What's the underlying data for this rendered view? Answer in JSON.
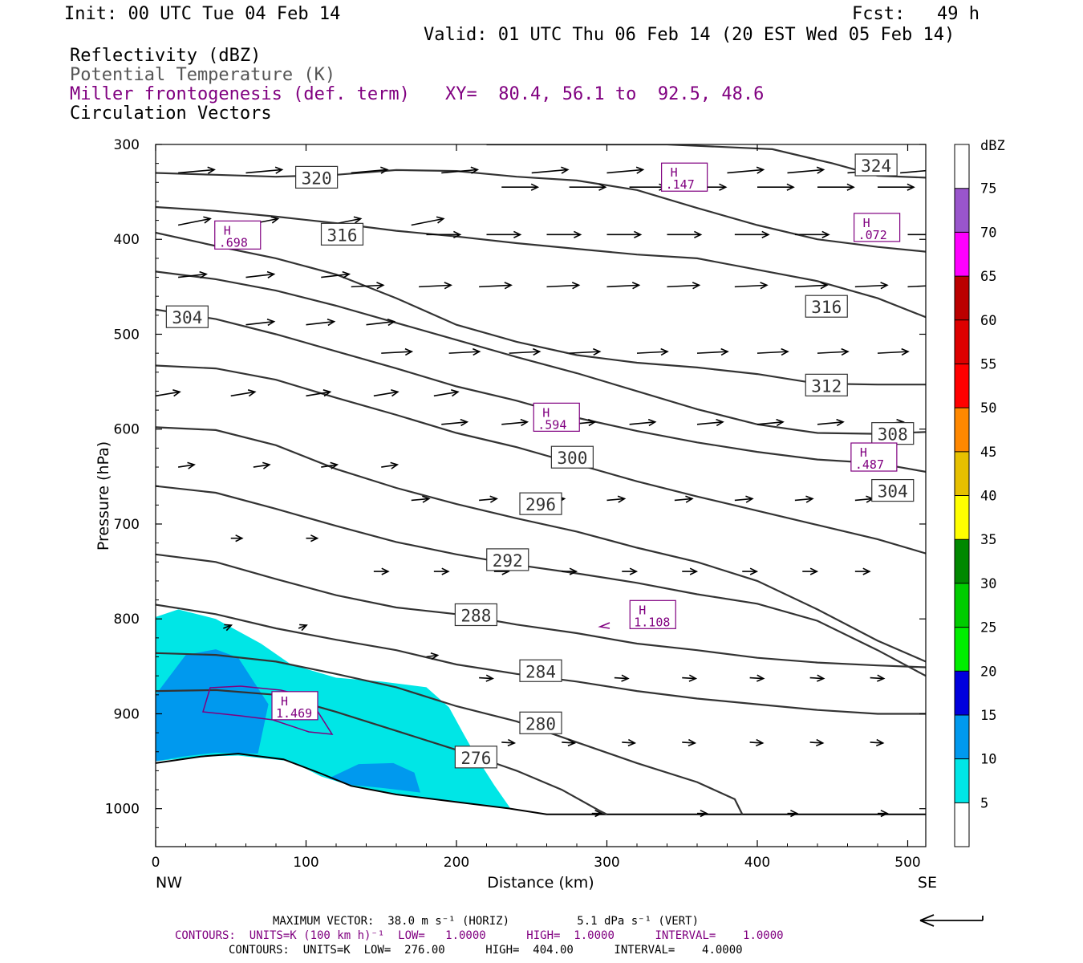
{
  "header": {
    "init": "Init: 00 UTC Tue 04 Feb 14",
    "fcst": "Fcst:   49 h",
    "valid": "Valid: 01 UTC Thu 06 Feb 14 (20 EST Wed 05 Feb 14)",
    "field1": "Reflectivity (dBZ)",
    "field2": "Potential Temperature (K)",
    "field3": "Miller frontogenesis (def. term)",
    "xy": "XY=  80.4, 56.1 to  92.5, 48.6",
    "field4": "Circulation Vectors"
  },
  "footer": {
    "maxvec": "MAXIMUM VECTOR:  38.0 m s⁻¹ (HORIZ)          5.1 dPa s⁻¹ (VERT)",
    "contours_front": "CONTOURS:  UNITS=K (100 km h)⁻¹  LOW=   1.0000      HIGH=  1.0000      INTERVAL=    1.0000",
    "contours_theta": "CONTOURS:  UNITS=K  LOW=  276.00      HIGH=  404.00      INTERVAL=    4.0000"
  },
  "colors": {
    "frontogenesis": "#800080",
    "theta": "#333333"
  },
  "chart_data": {
    "type": "cross-section",
    "xlabel": "Distance (km)",
    "ylabel": "Pressure (hPa)",
    "xlim": [
      0,
      512
    ],
    "ylim": [
      1040,
      300
    ],
    "x_ticks": [
      0,
      100,
      200,
      300,
      400,
      500
    ],
    "y_ticks": [
      300,
      400,
      500,
      600,
      700,
      800,
      900,
      1000
    ],
    "left_end_label": "NW",
    "right_end_label": "SE",
    "colorbar": {
      "unit": "dBZ",
      "levels": [
        5,
        10,
        15,
        20,
        25,
        30,
        35,
        40,
        45,
        50,
        55,
        60,
        65,
        70,
        75
      ],
      "colors": [
        "#ffffff",
        "#00e6e6",
        "#0099ee",
        "#0000dd",
        "#00ee00",
        "#00cc00",
        "#008800",
        "#ffff00",
        "#e6c000",
        "#ff8800",
        "#ff0000",
        "#dd0000",
        "#bb0000",
        "#ff00ff",
        "#9955cc",
        "#ffffff"
      ]
    },
    "reflectivity": [
      {
        "dbz": 5,
        "color": "#00e6e6",
        "polygon": [
          [
            0,
            798
          ],
          [
            15,
            790
          ],
          [
            40,
            800
          ],
          [
            70,
            826
          ],
          [
            90,
            848
          ],
          [
            120,
            862
          ],
          [
            150,
            866
          ],
          [
            180,
            872
          ],
          [
            195,
            893
          ],
          [
            205,
            922
          ],
          [
            215,
            950
          ],
          [
            225,
            975
          ],
          [
            236,
            1000
          ],
          [
            200,
            993
          ],
          [
            170,
            987
          ],
          [
            130,
            976
          ],
          [
            110,
            966
          ],
          [
            90,
            950
          ],
          [
            55,
            944
          ],
          [
            30,
            945
          ],
          [
            0,
            950
          ]
        ]
      },
      {
        "dbz": 10,
        "color": "#0099ee",
        "polygon": [
          [
            0,
            880
          ],
          [
            20,
            838
          ],
          [
            40,
            832
          ],
          [
            55,
            841
          ],
          [
            75,
            890
          ],
          [
            68,
            942
          ],
          [
            40,
            941
          ],
          [
            18,
            945
          ],
          [
            0,
            950
          ]
        ]
      },
      {
        "dbz": 10,
        "color": "#0099ee",
        "polygon": [
          [
            115,
            968
          ],
          [
            135,
            953
          ],
          [
            158,
            952
          ],
          [
            172,
            962
          ],
          [
            176,
            983
          ],
          [
            150,
            978
          ],
          [
            130,
            975
          ]
        ]
      }
    ],
    "ground": [
      [
        0,
        952
      ],
      [
        30,
        945
      ],
      [
        55,
        942
      ],
      [
        85,
        948
      ],
      [
        110,
        963
      ],
      [
        130,
        976
      ],
      [
        160,
        985
      ],
      [
        200,
        993
      ],
      [
        236,
        1000
      ],
      [
        260,
        1006
      ],
      [
        300,
        1006
      ],
      [
        400,
        1006
      ],
      [
        512,
        1006
      ]
    ],
    "theta_contours": [
      {
        "value": 276,
        "label_at": [
          213,
          946
        ],
        "points": [
          [
            0,
            876
          ],
          [
            40,
            875
          ],
          [
            80,
            880
          ],
          [
            120,
            898
          ],
          [
            160,
            918
          ],
          [
            200,
            938
          ],
          [
            240,
            960
          ],
          [
            270,
            980
          ],
          [
            295,
            1002
          ],
          [
            300,
            1006
          ]
        ]
      },
      {
        "value": 280,
        "label_at": [
          256,
          910
        ],
        "points": [
          [
            0,
            836
          ],
          [
            40,
            838
          ],
          [
            80,
            845
          ],
          [
            120,
            858
          ],
          [
            160,
            872
          ],
          [
            200,
            892
          ],
          [
            240,
            908
          ],
          [
            280,
            930
          ],
          [
            320,
            952
          ],
          [
            360,
            972
          ],
          [
            385,
            990
          ],
          [
            390,
            1006
          ]
        ]
      },
      {
        "value": 284,
        "label_at": [
          256,
          855
        ],
        "points": [
          [
            0,
            785
          ],
          [
            40,
            795
          ],
          [
            80,
            810
          ],
          [
            120,
            822
          ],
          [
            160,
            833
          ],
          [
            200,
            848
          ],
          [
            240,
            858
          ],
          [
            280,
            866
          ],
          [
            320,
            876
          ],
          [
            360,
            884
          ],
          [
            400,
            890
          ],
          [
            440,
            896
          ],
          [
            480,
            900
          ],
          [
            512,
            900
          ]
        ]
      },
      {
        "value": 288,
        "label_at": [
          213,
          796
        ],
        "points": [
          [
            0,
            732
          ],
          [
            40,
            740
          ],
          [
            80,
            758
          ],
          [
            120,
            775
          ],
          [
            160,
            788
          ],
          [
            200,
            795
          ],
          [
            240,
            806
          ],
          [
            280,
            815
          ],
          [
            320,
            826
          ],
          [
            360,
            833
          ],
          [
            400,
            841
          ],
          [
            440,
            846
          ],
          [
            480,
            849
          ],
          [
            512,
            851
          ]
        ]
      },
      {
        "value": 292,
        "label_at": [
          234,
          738
        ],
        "points": [
          [
            0,
            660
          ],
          [
            40,
            667
          ],
          [
            80,
            684
          ],
          [
            120,
            702
          ],
          [
            160,
            719
          ],
          [
            200,
            732
          ],
          [
            240,
            743
          ],
          [
            280,
            752
          ],
          [
            320,
            762
          ],
          [
            360,
            774
          ],
          [
            400,
            784
          ],
          [
            440,
            802
          ],
          [
            480,
            833
          ],
          [
            512,
            860
          ]
        ]
      },
      {
        "value": 296,
        "label_at": [
          256,
          679
        ],
        "points": [
          [
            0,
            598
          ],
          [
            40,
            601
          ],
          [
            80,
            617
          ],
          [
            120,
            642
          ],
          [
            160,
            662
          ],
          [
            200,
            679
          ],
          [
            240,
            694
          ],
          [
            280,
            708
          ],
          [
            320,
            725
          ],
          [
            360,
            740
          ],
          [
            400,
            760
          ],
          [
            440,
            790
          ],
          [
            480,
            823
          ],
          [
            512,
            845
          ]
        ]
      },
      {
        "value": 300,
        "label_at": [
          277,
          630
        ],
        "points": [
          [
            0,
            533
          ],
          [
            40,
            536
          ],
          [
            80,
            548
          ],
          [
            120,
            567
          ],
          [
            160,
            585
          ],
          [
            200,
            604
          ],
          [
            240,
            619
          ],
          [
            280,
            637
          ],
          [
            320,
            655
          ],
          [
            360,
            671
          ],
          [
            400,
            686
          ],
          [
            440,
            701
          ],
          [
            480,
            716
          ],
          [
            512,
            731
          ]
        ]
      },
      {
        "value": 304,
        "label_at": [
          21,
          482
        ],
        "points": [
          [
            0,
            474
          ],
          [
            40,
            484
          ],
          [
            80,
            500
          ],
          [
            120,
            518
          ],
          [
            160,
            536
          ],
          [
            200,
            555
          ],
          [
            240,
            570
          ],
          [
            280,
            588
          ],
          [
            320,
            602
          ],
          [
            360,
            614
          ],
          [
            400,
            624
          ],
          [
            440,
            632
          ],
          [
            480,
            636
          ],
          [
            512,
            645
          ]
        ]
      },
      {
        "value": 304,
        "label_at": [
          490,
          665
        ]
      },
      {
        "value": 308,
        "label_at": [
          490,
          605
        ],
        "points": [
          [
            0,
            434
          ],
          [
            40,
            442
          ],
          [
            80,
            454
          ],
          [
            120,
            470
          ],
          [
            160,
            488
          ],
          [
            200,
            506
          ],
          [
            240,
            524
          ],
          [
            280,
            541
          ],
          [
            320,
            560
          ],
          [
            360,
            579
          ],
          [
            400,
            595
          ],
          [
            440,
            604
          ],
          [
            480,
            605
          ],
          [
            512,
            603
          ]
        ]
      },
      {
        "value": 312,
        "label_at": [
          446,
          554
        ],
        "points": [
          [
            0,
            393
          ],
          [
            40,
            407
          ],
          [
            80,
            420
          ],
          [
            120,
            437
          ],
          [
            160,
            462
          ],
          [
            200,
            490
          ],
          [
            240,
            508
          ],
          [
            280,
            522
          ],
          [
            320,
            530
          ],
          [
            360,
            535
          ],
          [
            400,
            542
          ],
          [
            440,
            552
          ],
          [
            480,
            553
          ],
          [
            512,
            553
          ]
        ]
      },
      {
        "value": 316,
        "label_at": [
          124,
          395
        ],
        "points": [
          [
            0,
            366
          ],
          [
            40,
            370
          ],
          [
            80,
            376
          ],
          [
            120,
            383
          ],
          [
            160,
            391
          ],
          [
            200,
            397
          ],
          [
            240,
            404
          ],
          [
            280,
            410
          ],
          [
            320,
            416
          ],
          [
            360,
            420
          ],
          [
            400,
            432
          ],
          [
            440,
            444
          ],
          [
            480,
            462
          ],
          [
            512,
            482
          ]
        ]
      },
      {
        "value": 316,
        "label_at": [
          446,
          471
        ]
      },
      {
        "value": 320,
        "label_at": [
          107,
          335
        ],
        "points": [
          [
            0,
            330
          ],
          [
            40,
            332
          ],
          [
            80,
            334
          ],
          [
            120,
            332
          ],
          [
            160,
            327
          ],
          [
            200,
            328
          ],
          [
            240,
            334
          ],
          [
            280,
            338
          ],
          [
            320,
            348
          ],
          [
            360,
            367
          ],
          [
            400,
            385
          ],
          [
            440,
            400
          ],
          [
            480,
            408
          ],
          [
            512,
            413
          ]
        ]
      },
      {
        "value": 324,
        "label_at": [
          479,
          322
        ],
        "points": [
          [
            220,
            300
          ],
          [
            260,
            300
          ],
          [
            340,
            300
          ],
          [
            410,
            305
          ],
          [
            450,
            320
          ],
          [
            480,
            333
          ],
          [
            512,
            335
          ]
        ]
      }
    ],
    "frontogenesis_maxima": [
      {
        "label": "H",
        "value": ".698",
        "at": [
          42,
          406
        ]
      },
      {
        "label": "H",
        "value": ".147",
        "at": [
          339,
          345
        ]
      },
      {
        "label": "H",
        "value": ".072",
        "at": [
          467,
          398
        ]
      },
      {
        "label": "H",
        "value": ".594",
        "at": [
          254,
          598
        ]
      },
      {
        "label": "H",
        "value": ".487",
        "at": [
          465,
          640
        ]
      },
      {
        "label": "H",
        "value": "1.108",
        "at": [
          318,
          806
        ]
      },
      {
        "label": "H",
        "value": "1.469",
        "at": [
          80,
          902
        ]
      }
    ]
  }
}
